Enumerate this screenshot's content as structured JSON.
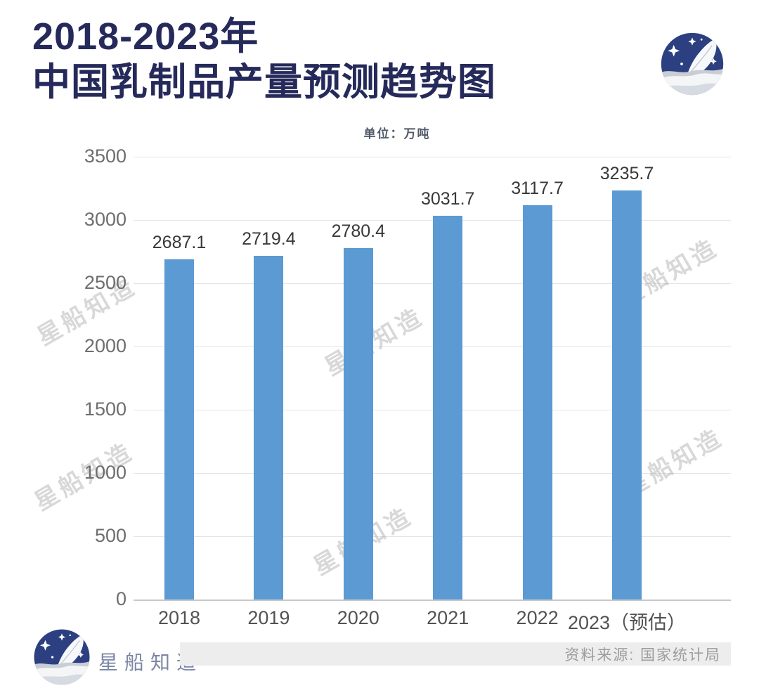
{
  "header": {
    "title_line1": "2018-2023年",
    "title_line2": "中国乳制品产量预测趋势图",
    "unit_label": "单位：万吨"
  },
  "chart_data": {
    "type": "bar",
    "title": "2018-2023年中国乳制品产量预测趋势图",
    "unit": "万吨",
    "categories": [
      "2018",
      "2019",
      "2020",
      "2021",
      "2022",
      "2023（预估）"
    ],
    "values": [
      2687.1,
      2719.4,
      2780.4,
      3031.7,
      3117.7,
      3235.7
    ],
    "xlabel": "",
    "ylabel": "",
    "ylim": [
      0,
      3500
    ],
    "yticks": [
      0,
      500,
      1000,
      1500,
      2000,
      2500,
      3000,
      3500
    ],
    "grid": true,
    "legend": "none",
    "bar_color": "#5b9ad3"
  },
  "watermark": {
    "text": "星船知造"
  },
  "footer": {
    "brand_name": "星船知造",
    "source_text": "资料来源: 国家统计局"
  },
  "colors": {
    "title_navy": "#262a5a",
    "bar_blue": "#5b9ad3",
    "logo_navy": "#2c3f80",
    "gridline": "#e4e4e4",
    "axis_line": "#c9c9c9",
    "y_tick_text": "#6e6e6e",
    "x_tick_text": "#525252",
    "value_label_text": "#383838",
    "footer_bar_bg": "#ededed",
    "footer_source_text": "#9c9c9c",
    "footer_brand_text": "#7c86a6"
  }
}
